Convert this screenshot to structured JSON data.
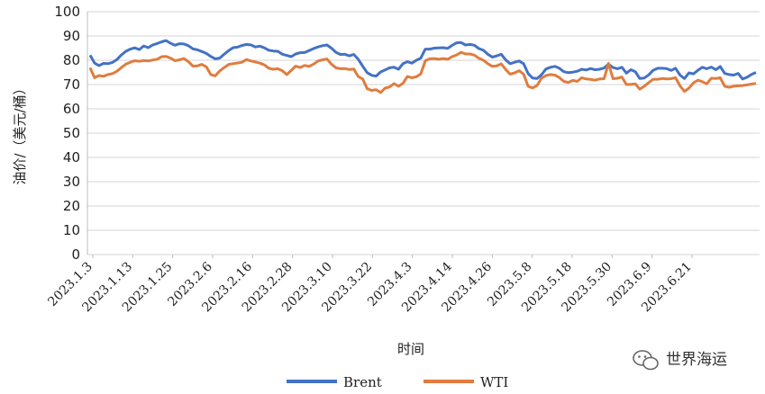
{
  "chart_data": {
    "type": "line",
    "xlabel": "时间",
    "ylabel": "油价/（美元/桶）",
    "ylim": [
      0,
      100
    ],
    "yticks": [
      "0",
      "10",
      "20",
      "30",
      "40",
      "50",
      "60",
      "70",
      "80",
      "90",
      "100"
    ],
    "xtick_labels": [
      "2023.1.3",
      "2023.1.13",
      "2023.1.25",
      "2023.2.6",
      "2023.2.16",
      "2023.2.28",
      "2023.3.10",
      "2023.3.22",
      "2023.4.3",
      "2023.4.14",
      "2023.4.26",
      "2023.5.8",
      "2023.5.18",
      "2023.5.30",
      "2023.6.9",
      "2023.6.21"
    ],
    "grid": true,
    "legend_position": "bottom",
    "series": [
      {
        "name": "Brent",
        "color": "#4472c4",
        "values": [
          82.1,
          78.8,
          77.8,
          78.7,
          78.6,
          79.1,
          80.3,
          82.2,
          83.7,
          84.6,
          85.1,
          84.4,
          85.9,
          85.2,
          86.3,
          86.9,
          87.6,
          88.1,
          87.0,
          86.2,
          86.8,
          86.7,
          86.0,
          84.7,
          84.3,
          83.6,
          82.8,
          81.6,
          80.6,
          80.9,
          82.5,
          84.0,
          85.2,
          85.4,
          86.1,
          86.5,
          86.3,
          85.5,
          85.8,
          85.1,
          84.1,
          83.8,
          83.7,
          82.5,
          82.0,
          81.5,
          82.6,
          83.1,
          83.2,
          84.0,
          84.8,
          85.5,
          86.0,
          86.3,
          85.0,
          83.3,
          82.4,
          82.5,
          81.8,
          82.4,
          80.4,
          77.6,
          74.9,
          73.8,
          73.5,
          75.2,
          76.0,
          76.9,
          77.1,
          76.3,
          78.6,
          79.4,
          78.8,
          80.0,
          80.9,
          84.6,
          84.6,
          85.0,
          85.1,
          85.2,
          84.9,
          86.1,
          87.2,
          87.3,
          86.3,
          86.5,
          86.2,
          84.8,
          84.1,
          82.5,
          81.3,
          81.8,
          82.5,
          80.1,
          78.6,
          79.2,
          79.7,
          78.6,
          74.5,
          72.7,
          72.5,
          74.0,
          76.4,
          77.1,
          77.5,
          76.7,
          75.3,
          74.9,
          75.1,
          75.5,
          76.3,
          76.0,
          76.6,
          76.1,
          76.3,
          76.8,
          78.4,
          77.0,
          76.5,
          77.1,
          74.7,
          76.1,
          75.3,
          72.5,
          72.7,
          74.0,
          75.9,
          76.7,
          76.7,
          76.6,
          75.8,
          76.7,
          73.9,
          72.5,
          74.8,
          74.4,
          75.9,
          77.1,
          76.5,
          77.2,
          76.1,
          77.4,
          74.6,
          74.1,
          73.9,
          74.6,
          72.3,
          73.0,
          74.2,
          75.0
        ]
      },
      {
        "name": "WTI",
        "color": "#e07c3e",
        "values": [
          76.9,
          72.8,
          73.7,
          73.4,
          74.1,
          74.5,
          75.5,
          77.0,
          78.4,
          79.2,
          79.8,
          79.6,
          79.9,
          79.7,
          80.1,
          80.4,
          81.5,
          81.6,
          80.9,
          79.8,
          80.2,
          80.7,
          79.4,
          77.6,
          77.7,
          78.3,
          77.3,
          74.1,
          73.6,
          75.6,
          77.0,
          78.3,
          78.6,
          78.9,
          79.2,
          80.3,
          79.7,
          79.3,
          78.8,
          78.1,
          76.7,
          76.3,
          76.5,
          75.7,
          74.1,
          75.8,
          77.6,
          77.0,
          77.9,
          77.5,
          78.4,
          79.7,
          80.2,
          80.5,
          78.4,
          76.9,
          76.5,
          76.6,
          76.2,
          76.4,
          73.3,
          72.3,
          68.3,
          67.6,
          67.9,
          66.7,
          68.5,
          69.0,
          70.4,
          69.3,
          70.5,
          73.3,
          72.8,
          73.2,
          74.4,
          79.8,
          80.6,
          80.7,
          80.4,
          80.7,
          80.4,
          81.5,
          82.2,
          83.3,
          82.6,
          82.6,
          82.1,
          80.8,
          80.0,
          78.6,
          77.5,
          77.7,
          78.5,
          76.2,
          74.3,
          74.8,
          75.7,
          74.3,
          69.3,
          68.6,
          69.6,
          72.6,
          73.7,
          74.1,
          73.9,
          72.9,
          71.3,
          70.9,
          71.7,
          71.3,
          72.8,
          72.3,
          72.1,
          71.8,
          72.3,
          72.4,
          78.7,
          72.4,
          72.6,
          73.1,
          70.0,
          70.1,
          70.3,
          68.1,
          69.3,
          70.8,
          72.2,
          72.2,
          72.5,
          72.3,
          72.4,
          72.8,
          69.5,
          67.2,
          68.5,
          70.7,
          71.8,
          71.2,
          70.3,
          72.6,
          72.5,
          72.8,
          69.3,
          68.9,
          69.3,
          69.5,
          69.6,
          69.9,
          70.2,
          70.5
        ]
      }
    ]
  },
  "watermark": {
    "text": "世界海运",
    "icon": "wechat-icon"
  }
}
